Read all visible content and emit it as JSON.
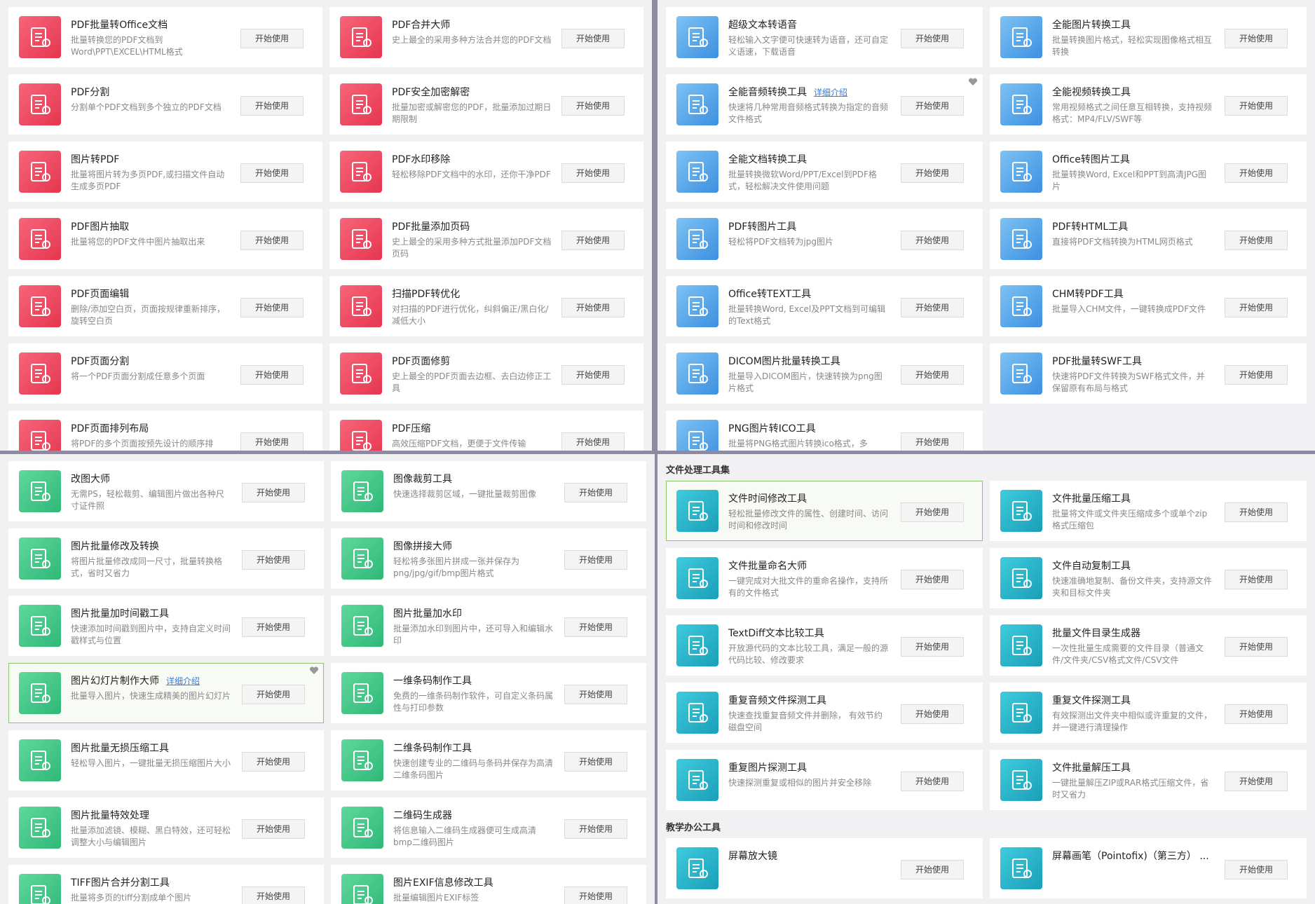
{
  "button": "开始使用",
  "panels": [
    {
      "sections": [
        {
          "items": [
            {
              "title": "PDF批量转Office文档",
              "desc": "批量转换您的PDF文档到Word\\PPT\\EXCEL\\HTML格式"
            },
            {
              "title": "PDF合并大师",
              "desc": "史上最全的采用多种方法合并您的PDF文档"
            },
            {
              "title": "PDF分割",
              "desc": "分割单个PDF文档到多个独立的PDF文档"
            },
            {
              "title": "PDF安全加密解密",
              "desc": "批量加密或解密您的PDF，批量添加过期日期限制"
            },
            {
              "title": "图片转PDF",
              "desc": "批量将图片转为多页PDF,或扫描文件自动生成多页PDF"
            },
            {
              "title": "PDF水印移除",
              "desc": "轻松移除PDF文档中的水印，还你干净PDF"
            },
            {
              "title": "PDF图片抽取",
              "desc": "批量将您的PDF文件中图片抽取出来"
            },
            {
              "title": "PDF批量添加页码",
              "desc": "史上最全的采用多种方式批量添加PDF文档页码"
            },
            {
              "title": "PDF页面编辑",
              "desc": "删除/添加空白页，页面按规律重新排序，旋转空白页"
            },
            {
              "title": "扫描PDF转优化",
              "desc": "对扫描的PDF进行优化，纠斜偏正/黑白化/减低大小"
            },
            {
              "title": "PDF页面分割",
              "desc": "将一个PDF页面分割成任意多个页面"
            },
            {
              "title": "PDF页面修剪",
              "desc": "史上最全的PDF页面去边框、去白边修正工具"
            },
            {
              "title": "PDF页面排列布局",
              "desc": "将PDF的多个页面按预先设计的顺序排"
            },
            {
              "title": "PDF压缩",
              "desc": "高效压缩PDF文档，更便于文件传输"
            }
          ]
        }
      ]
    },
    {
      "sections": [
        {
          "items": [
            {
              "title": "超级文本转语音",
              "desc": "轻松输入文字便可快速转为语音，还可自定义语速，下载语音"
            },
            {
              "title": "全能图片转换工具",
              "desc": "批量转换图片格式，轻松实现图像格式相互转换"
            },
            {
              "title": "全能音频转换工具",
              "link": "详细介绍",
              "desc": "快速将几种常用音频格式转换为指定的音频文件格式"
            },
            {
              "title": "全能视频转换工具",
              "desc": "常用视频格式之间任意互相转换，支持视频格式：MP4/FLV/SWF等"
            },
            {
              "title": "全能文档转换工具",
              "desc": "批量转换微软Word/PPT/Excel到PDF格式，轻松解决文件使用问题"
            },
            {
              "title": "Office转图片工具",
              "desc": "批量转换Word, Excel和PPT到高清JPG图片"
            },
            {
              "title": "PDF转图片工具",
              "desc": "轻松将PDF文档转为jpg图片"
            },
            {
              "title": "PDF转HTML工具",
              "desc": "直接将PDF文档转换为HTML网页格式"
            },
            {
              "title": "Office转TEXT工具",
              "desc": "批量转换Word, Excel及PPT文档到可编辑的Text格式"
            },
            {
              "title": "CHM转PDF工具",
              "desc": "批量导入CHM文件，一键转换成PDF文件"
            },
            {
              "title": "DICOM图片批量转换工具",
              "desc": "批量导入DICOM图片，快速转换为png图片格式"
            },
            {
              "title": "PDF批量转SWF工具",
              "desc": "快速将PDF文件转换为SWF格式文件，并保留原有布局与格式"
            },
            {
              "title": "PNG图片转ICO工具",
              "desc": "批量将PNG格式图片转换ico格式，多"
            }
          ]
        }
      ]
    },
    {
      "sections": [
        {
          "items": [
            {
              "title": "改图大师",
              "desc": "无需PS，轻松裁剪、编辑图片做出各种尺寸证件照"
            },
            {
              "title": "图像裁剪工具",
              "desc": "快速选择裁剪区域，一键批量裁剪图像"
            },
            {
              "title": "图片批量修改及转换",
              "desc": "将图片批量修改成同一尺寸，批量转换格式，省时又省力"
            },
            {
              "title": "图像拼接大师",
              "desc": "轻松将多张图片拼成一张并保存为png/jpg/gif/bmp图片格式"
            },
            {
              "title": "图片批量加时间戳工具",
              "desc": "快速添加时间戳到图片中，支持自定义时间戳样式与位置"
            },
            {
              "title": "图片批量加水印",
              "desc": "批量添加水印到图片中，还可导入和编辑水印"
            },
            {
              "title": "图片幻灯片制作大师",
              "link": "详细介绍",
              "desc": "批量导入图片，快速生成精美的图片幻灯片",
              "selected": true
            },
            {
              "title": "一维条码制作工具",
              "desc": "免费的一维条码制作软件，可自定义条码属性与打印参数"
            },
            {
              "title": "图片批量无损压缩工具",
              "desc": "轻松导入图片，一键批量无损压缩图片大小"
            },
            {
              "title": "二维条码制作工具",
              "desc": "快速创建专业的二维码与条码并保存为高清二维条码图片"
            },
            {
              "title": "图片批量特效处理",
              "desc": "批量添加滤镜、模糊、黑白特效，还可轻松调整大小与编辑图片"
            },
            {
              "title": "二维码生成器",
              "desc": "将信息输入二维码生成器便可生成高清bmp二维码图片"
            },
            {
              "title": "TIFF图片合并分割工具",
              "desc": "批量将多页的tiff分割成单个图片"
            },
            {
              "title": "图片EXIF信息修改工具",
              "desc": "批量编辑图片EXIF标签"
            }
          ]
        }
      ]
    },
    {
      "sections": [
        {
          "heading": "文件处理工具集",
          "items": [
            {
              "title": "文件时间修改工具",
              "desc": "轻松批量修改文件的属性、创建时间、访问时间和修改时间",
              "selected": true
            },
            {
              "title": "文件批量压缩工具",
              "desc": "批量将文件或文件夹压缩成多个或单个zip格式压缩包"
            },
            {
              "title": "文件批量命名大师",
              "desc": "一键完成对大批文件的重命名操作，支持所有的文件格式"
            },
            {
              "title": "文件自动复制工具",
              "desc": "快速准确地复制、备份文件夹，支持源文件夹和目标文件夹"
            },
            {
              "title": "TextDiff文本比较工具",
              "desc": "开放源代码的文本比较工具，满足一般的源代码比较、修改要求"
            },
            {
              "title": "批量文件目录生成器",
              "desc": "一次性批量生成需要的文件目录（普通文件/文件夹/CSV格式文件/CSV文件"
            },
            {
              "title": "重复音频文件探测工具",
              "desc": "快速查找重复音频文件并删除， 有效节约磁盘空间"
            },
            {
              "title": "重复文件探测工具",
              "desc": "有效探测出文件夹中相似或许重复的文件，并一键进行清理操作"
            },
            {
              "title": "重复图片探测工具",
              "desc": "快速探测重复或相似的图片并安全移除"
            },
            {
              "title": "文件批量解压工具",
              "desc": "一键批量解压ZIP或RAR格式压缩文件，省时又省力"
            }
          ]
        },
        {
          "heading": "教学办公工具",
          "items": [
            {
              "title": "屏幕放大镜"
            },
            {
              "title": "屏幕画笔（Pointofix)（第三方）  ..."
            }
          ]
        }
      ]
    }
  ]
}
